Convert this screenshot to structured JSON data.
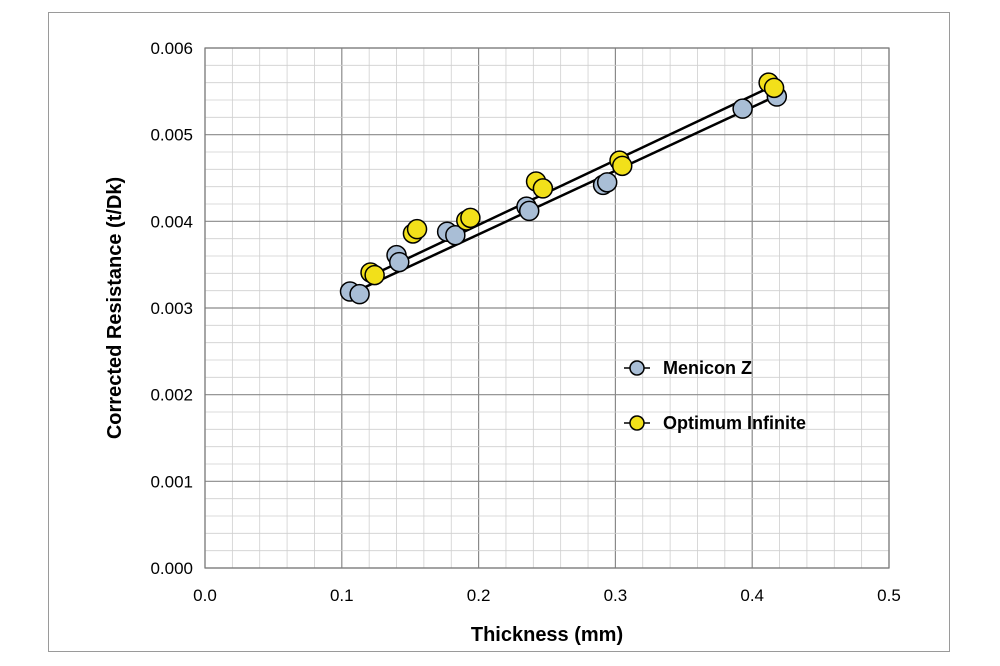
{
  "chart_data": {
    "type": "scatter",
    "xlabel": "Thickness (mm)",
    "ylabel": "Corrected Resistance (t/Dk)",
    "xlim": [
      0,
      0.5
    ],
    "ylim": [
      0,
      0.006
    ],
    "x_ticks": [
      "0.0",
      "0.1",
      "0.2",
      "0.3",
      "0.4",
      "0.5"
    ],
    "y_ticks": [
      "0.000",
      "0.001",
      "0.002",
      "0.003",
      "0.004",
      "0.005",
      "0.006"
    ],
    "grid": true,
    "legend_position": "right",
    "series": [
      {
        "name": "Menicon Z",
        "color": "#a9bed6",
        "points": [
          {
            "x": 0.106,
            "y": 0.00319
          },
          {
            "x": 0.113,
            "y": 0.00316
          },
          {
            "x": 0.14,
            "y": 0.00361
          },
          {
            "x": 0.142,
            "y": 0.00353
          },
          {
            "x": 0.177,
            "y": 0.00388
          },
          {
            "x": 0.183,
            "y": 0.00384
          },
          {
            "x": 0.235,
            "y": 0.00417
          },
          {
            "x": 0.237,
            "y": 0.00412
          },
          {
            "x": 0.291,
            "y": 0.00442
          },
          {
            "x": 0.294,
            "y": 0.00445
          },
          {
            "x": 0.393,
            "y": 0.0053
          },
          {
            "x": 0.418,
            "y": 0.00544
          }
        ],
        "trendline": {
          "x": [
            0.106,
            0.418
          ],
          "y": [
            0.00316,
            0.00545
          ]
        }
      },
      {
        "name": "Optimum Infinite",
        "color": "#f2e01a",
        "points": [
          {
            "x": 0.121,
            "y": 0.00341
          },
          {
            "x": 0.124,
            "y": 0.00338
          },
          {
            "x": 0.152,
            "y": 0.00386
          },
          {
            "x": 0.155,
            "y": 0.00391
          },
          {
            "x": 0.191,
            "y": 0.00401
          },
          {
            "x": 0.194,
            "y": 0.00404
          },
          {
            "x": 0.242,
            "y": 0.00446
          },
          {
            "x": 0.247,
            "y": 0.00438
          },
          {
            "x": 0.303,
            "y": 0.0047
          },
          {
            "x": 0.305,
            "y": 0.00464
          },
          {
            "x": 0.412,
            "y": 0.0056
          },
          {
            "x": 0.416,
            "y": 0.00554
          }
        ],
        "trendline": {
          "x": [
            0.121,
            0.416
          ],
          "y": [
            0.00337,
            0.00557
          ]
        }
      }
    ]
  }
}
